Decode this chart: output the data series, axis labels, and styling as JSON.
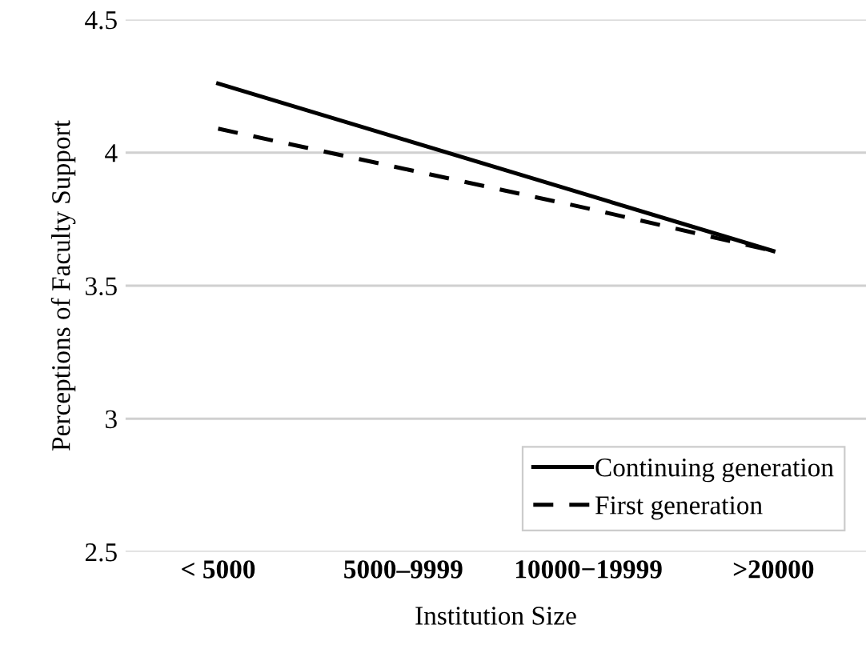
{
  "chart_data": {
    "type": "line",
    "xlabel": "Institution Size",
    "ylabel": "Perceptions of Faculty Support",
    "categories": [
      "< 5000",
      "5000–9999",
      "10000−19999",
      ">20000"
    ],
    "series": [
      {
        "name": "Continuing generation",
        "color": "#000000",
        "line_style": "solid",
        "values": [
          4.26,
          4.05,
          3.84,
          3.63
        ]
      },
      {
        "name": "First generation",
        "color": "#000000",
        "line_style": "dashed",
        "values": [
          4.09,
          3.94,
          3.79,
          3.63
        ]
      }
    ],
    "ylim": [
      2.5,
      4.5
    ],
    "yticks": [
      2.5,
      3,
      3.5,
      4,
      4.5
    ],
    "grid": "y",
    "legend": "bottom right",
    "marker": "none"
  }
}
